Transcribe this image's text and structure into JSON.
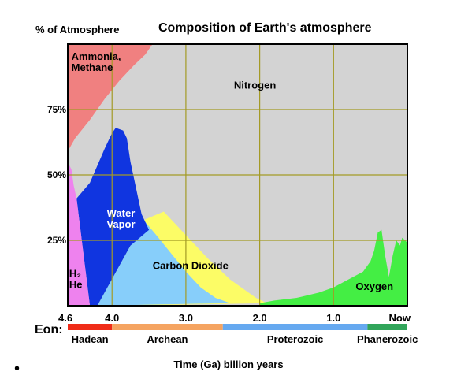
{
  "chart_data": {
    "type": "area",
    "title": "Composition of Earth's atmosphere",
    "ylabel": "% of Atmosphere",
    "xlabel": "Time (Ga) billion years",
    "xlim": [
      4.6,
      0
    ],
    "ylim": [
      0,
      100
    ],
    "grid": true,
    "x_ticks": [
      {
        "value": 4.6,
        "label": "4.6"
      },
      {
        "value": 4.0,
        "label": "4.0"
      },
      {
        "value": 3.0,
        "label": "3.0"
      },
      {
        "value": 2.0,
        "label": "2.0"
      },
      {
        "value": 1.0,
        "label": "1.0"
      },
      {
        "value": 0.0,
        "label": "Now"
      }
    ],
    "y_ticks": [
      {
        "value": 75,
        "label": "75%"
      },
      {
        "value": 50,
        "label": "50%"
      },
      {
        "value": 25,
        "label": "25%"
      }
    ],
    "series": [
      {
        "name": "Nitrogen",
        "color": "#d3d3d3",
        "label_at": [
          2.35,
          83
        ],
        "label_color": "#000000",
        "polygon": [
          [
            4.6,
            59
          ],
          [
            4.5,
            64
          ],
          [
            4.3,
            71
          ],
          [
            4.1,
            79
          ],
          [
            3.9,
            86
          ],
          [
            3.7,
            92
          ],
          [
            3.55,
            96
          ],
          [
            3.45,
            100
          ],
          [
            0,
            100
          ],
          [
            0,
            0
          ],
          [
            4.6,
            0
          ]
        ]
      },
      {
        "name": "Ammonia, Methane",
        "color": "#f08080",
        "label_at": [
          4.55,
          94
        ],
        "label_at2": [
          4.55,
          89
        ],
        "label_color": "#000000",
        "polygon": [
          [
            4.6,
            100
          ],
          [
            3.45,
            100
          ],
          [
            3.55,
            96
          ],
          [
            3.7,
            92
          ],
          [
            3.9,
            86
          ],
          [
            4.1,
            79
          ],
          [
            4.3,
            71
          ],
          [
            4.5,
            64
          ],
          [
            4.6,
            59
          ]
        ]
      },
      {
        "name": "Carbon Dioxide",
        "color": "#fcfc66",
        "label_at": [
          3.45,
          14
        ],
        "label_color": "#000000",
        "polygon": [
          [
            3.75,
            23
          ],
          [
            3.55,
            33
          ],
          [
            3.3,
            36
          ],
          [
            3.0,
            27
          ],
          [
            2.7,
            18
          ],
          [
            2.4,
            10
          ],
          [
            2.05,
            3
          ],
          [
            1.9,
            1
          ],
          [
            3.9,
            0
          ],
          [
            4.2,
            0
          ]
        ]
      },
      {
        "name": "Carbon Dioxide",
        "color": "#87cefa",
        "polygon": [
          [
            3.75,
            23
          ],
          [
            3.55,
            32
          ],
          [
            3.4,
            27
          ],
          [
            3.2,
            20
          ],
          [
            3.0,
            13
          ],
          [
            2.8,
            7
          ],
          [
            2.6,
            3
          ],
          [
            2.4,
            1
          ],
          [
            4.2,
            0
          ]
        ]
      },
      {
        "name": "Water Vapor",
        "color": "#1035e0",
        "label_at": [
          3.88,
          34
        ],
        "label_at2": [
          3.88,
          30
        ],
        "label_color": "#ffffff",
        "polygon": [
          [
            4.48,
            41
          ],
          [
            4.3,
            47
          ],
          [
            4.1,
            60
          ],
          [
            4.0,
            66
          ],
          [
            3.95,
            68
          ],
          [
            3.85,
            67
          ],
          [
            3.8,
            64
          ],
          [
            3.75,
            55
          ],
          [
            3.6,
            35
          ],
          [
            3.5,
            29
          ],
          [
            3.75,
            23
          ],
          [
            4.2,
            0
          ],
          [
            4.3,
            0
          ]
        ]
      },
      {
        "name": "H2 He",
        "color": "#ee82ee",
        "label_at": [
          4.58,
          11
        ],
        "label_at2": [
          4.58,
          6
        ],
        "label_color": "#000000",
        "polygon": [
          [
            4.6,
            55
          ],
          [
            4.55,
            52
          ],
          [
            4.52,
            46
          ],
          [
            4.48,
            41
          ],
          [
            4.3,
            0
          ],
          [
            4.6,
            0
          ]
        ]
      },
      {
        "name": "Oxygen",
        "color": "#44ee44",
        "label_at": [
          0.7,
          6
        ],
        "label_color": "#000000",
        "polygon": [
          [
            2.0,
            1
          ],
          [
            1.8,
            2
          ],
          [
            1.5,
            3
          ],
          [
            1.2,
            5
          ],
          [
            1.0,
            7
          ],
          [
            0.8,
            10
          ],
          [
            0.6,
            13
          ],
          [
            0.5,
            17
          ],
          [
            0.45,
            21
          ],
          [
            0.4,
            28
          ],
          [
            0.35,
            29
          ],
          [
            0.3,
            19
          ],
          [
            0.25,
            11
          ],
          [
            0.2,
            19
          ],
          [
            0.15,
            25
          ],
          [
            0.1,
            23
          ],
          [
            0.07,
            26
          ],
          [
            0.03,
            25
          ],
          [
            0,
            24
          ],
          [
            0,
            0
          ],
          [
            2.0,
            0
          ]
        ]
      }
    ],
    "eons": {
      "label": "Eon:",
      "items": [
        {
          "name": "Hadean",
          "start": 4.6,
          "end": 4.0,
          "color": "#f02c18"
        },
        {
          "name": "Archean",
          "start": 4.0,
          "end": 2.5,
          "color": "#f5a461"
        },
        {
          "name": "Proterozoic",
          "start": 2.5,
          "end": 0.54,
          "color": "#66a9f0"
        },
        {
          "name": "Phanerozoic",
          "start": 0.54,
          "end": 0.0,
          "color": "#31a55a"
        }
      ]
    }
  },
  "bullet": "•"
}
